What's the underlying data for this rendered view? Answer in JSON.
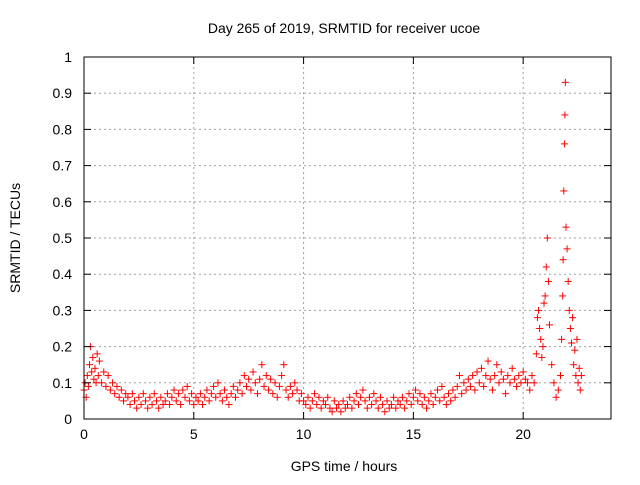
{
  "chart_data": {
    "type": "scatter",
    "title": "Day 265 of 2019, SRMTID for receiver ucoe",
    "xlabel": "GPS time / hours",
    "ylabel": "SRMTID / TECUs",
    "xlim": [
      0,
      24
    ],
    "ylim": [
      0,
      1
    ],
    "xticks": [
      0,
      5,
      10,
      15,
      20
    ],
    "xtick_labels": [
      "0",
      "5",
      "10",
      "15",
      "20"
    ],
    "yticks": [
      0,
      0.1,
      0.2,
      0.3,
      0.4,
      0.5,
      0.6,
      0.7,
      0.8,
      0.9,
      1
    ],
    "ytick_labels": [
      "0",
      "0.1",
      "0.2",
      "0.3",
      "0.4",
      "0.5",
      "0.6",
      "0.7",
      "0.8",
      "0.9",
      "1"
    ],
    "grid": true,
    "marker": "+",
    "series": [
      {
        "name": "SRMTID",
        "color": "#ff0000",
        "points": [
          [
            0.0,
            0.08
          ],
          [
            0.05,
            0.1
          ],
          [
            0.1,
            0.06
          ],
          [
            0.15,
            0.12
          ],
          [
            0.2,
            0.09
          ],
          [
            0.25,
            0.15
          ],
          [
            0.3,
            0.2
          ],
          [
            0.35,
            0.13
          ],
          [
            0.4,
            0.17
          ],
          [
            0.45,
            0.11
          ],
          [
            0.5,
            0.14
          ],
          [
            0.55,
            0.1
          ],
          [
            0.6,
            0.18
          ],
          [
            0.65,
            0.12
          ],
          [
            0.7,
            0.16
          ],
          [
            0.8,
            0.1
          ],
          [
            0.9,
            0.13
          ],
          [
            1.0,
            0.09
          ],
          [
            1.1,
            0.12
          ],
          [
            1.2,
            0.08
          ],
          [
            1.3,
            0.1
          ],
          [
            1.4,
            0.07
          ],
          [
            1.5,
            0.09
          ],
          [
            1.6,
            0.06
          ],
          [
            1.7,
            0.08
          ],
          [
            1.8,
            0.05
          ],
          [
            1.9,
            0.07
          ],
          [
            2.0,
            0.06
          ],
          [
            2.1,
            0.04
          ],
          [
            2.2,
            0.07
          ],
          [
            2.3,
            0.05
          ],
          [
            2.4,
            0.03
          ],
          [
            2.5,
            0.06
          ],
          [
            2.6,
            0.04
          ],
          [
            2.7,
            0.07
          ],
          [
            2.8,
            0.05
          ],
          [
            2.9,
            0.03
          ],
          [
            3.0,
            0.06
          ],
          [
            3.1,
            0.04
          ],
          [
            3.2,
            0.07
          ],
          [
            3.3,
            0.05
          ],
          [
            3.4,
            0.03
          ],
          [
            3.5,
            0.06
          ],
          [
            3.6,
            0.04
          ],
          [
            3.7,
            0.05
          ],
          [
            3.8,
            0.07
          ],
          [
            3.9,
            0.04
          ],
          [
            4.0,
            0.06
          ],
          [
            4.1,
            0.08
          ],
          [
            4.2,
            0.05
          ],
          [
            4.3,
            0.07
          ],
          [
            4.4,
            0.04
          ],
          [
            4.5,
            0.08
          ],
          [
            4.6,
            0.06
          ],
          [
            4.7,
            0.09
          ],
          [
            4.8,
            0.05
          ],
          [
            4.9,
            0.07
          ],
          [
            5.0,
            0.04
          ],
          [
            5.1,
            0.06
          ],
          [
            5.2,
            0.05
          ],
          [
            5.3,
            0.07
          ],
          [
            5.4,
            0.04
          ],
          [
            5.5,
            0.06
          ],
          [
            5.6,
            0.08
          ],
          [
            5.7,
            0.05
          ],
          [
            5.8,
            0.07
          ],
          [
            5.9,
            0.09
          ],
          [
            6.0,
            0.06
          ],
          [
            6.1,
            0.1
          ],
          [
            6.2,
            0.07
          ],
          [
            6.3,
            0.05
          ],
          [
            6.4,
            0.08
          ],
          [
            6.5,
            0.06
          ],
          [
            6.6,
            0.04
          ],
          [
            6.7,
            0.07
          ],
          [
            6.8,
            0.09
          ],
          [
            6.9,
            0.06
          ],
          [
            7.0,
            0.08
          ],
          [
            7.1,
            0.1
          ],
          [
            7.2,
            0.07
          ],
          [
            7.3,
            0.12
          ],
          [
            7.4,
            0.09
          ],
          [
            7.5,
            0.11
          ],
          [
            7.6,
            0.08
          ],
          [
            7.7,
            0.13
          ],
          [
            7.8,
            0.1
          ],
          [
            7.9,
            0.07
          ],
          [
            8.0,
            0.11
          ],
          [
            8.1,
            0.15
          ],
          [
            8.2,
            0.09
          ],
          [
            8.3,
            0.12
          ],
          [
            8.4,
            0.08
          ],
          [
            8.5,
            0.11
          ],
          [
            8.6,
            0.07
          ],
          [
            8.7,
            0.1
          ],
          [
            8.8,
            0.06
          ],
          [
            8.9,
            0.09
          ],
          [
            9.0,
            0.12
          ],
          [
            9.1,
            0.15
          ],
          [
            9.2,
            0.08
          ],
          [
            9.3,
            0.06
          ],
          [
            9.4,
            0.09
          ],
          [
            9.5,
            0.07
          ],
          [
            9.6,
            0.1
          ],
          [
            9.7,
            0.08
          ],
          [
            9.8,
            0.05
          ],
          [
            9.9,
            0.07
          ],
          [
            10.0,
            0.05
          ],
          [
            10.1,
            0.04
          ],
          [
            10.2,
            0.06
          ],
          [
            10.3,
            0.03
          ],
          [
            10.4,
            0.05
          ],
          [
            10.5,
            0.07
          ],
          [
            10.6,
            0.04
          ],
          [
            10.7,
            0.06
          ],
          [
            10.8,
            0.03
          ],
          [
            10.9,
            0.05
          ],
          [
            11.0,
            0.04
          ],
          [
            11.1,
            0.06
          ],
          [
            11.2,
            0.03
          ],
          [
            11.3,
            0.02
          ],
          [
            11.4,
            0.05
          ],
          [
            11.5,
            0.03
          ],
          [
            11.6,
            0.04
          ],
          [
            11.7,
            0.02
          ],
          [
            11.8,
            0.05
          ],
          [
            11.9,
            0.03
          ],
          [
            12.0,
            0.04
          ],
          [
            12.1,
            0.06
          ],
          [
            12.2,
            0.03
          ],
          [
            12.3,
            0.05
          ],
          [
            12.4,
            0.07
          ],
          [
            12.5,
            0.04
          ],
          [
            12.6,
            0.06
          ],
          [
            12.7,
            0.08
          ],
          [
            12.8,
            0.05
          ],
          [
            12.9,
            0.03
          ],
          [
            13.0,
            0.06
          ],
          [
            13.1,
            0.04
          ],
          [
            13.2,
            0.07
          ],
          [
            13.3,
            0.05
          ],
          [
            13.4,
            0.03
          ],
          [
            13.5,
            0.06
          ],
          [
            13.6,
            0.04
          ],
          [
            13.7,
            0.02
          ],
          [
            13.8,
            0.05
          ],
          [
            13.9,
            0.03
          ],
          [
            14.0,
            0.04
          ],
          [
            14.1,
            0.06
          ],
          [
            14.2,
            0.03
          ],
          [
            14.3,
            0.05
          ],
          [
            14.4,
            0.04
          ],
          [
            14.5,
            0.06
          ],
          [
            14.6,
            0.03
          ],
          [
            14.7,
            0.05
          ],
          [
            14.8,
            0.07
          ],
          [
            14.9,
            0.04
          ],
          [
            15.0,
            0.06
          ],
          [
            15.1,
            0.08
          ],
          [
            15.2,
            0.05
          ],
          [
            15.3,
            0.07
          ],
          [
            15.4,
            0.04
          ],
          [
            15.5,
            0.06
          ],
          [
            15.6,
            0.03
          ],
          [
            15.7,
            0.05
          ],
          [
            15.8,
            0.07
          ],
          [
            15.9,
            0.04
          ],
          [
            16.0,
            0.06
          ],
          [
            16.1,
            0.08
          ],
          [
            16.2,
            0.05
          ],
          [
            16.3,
            0.09
          ],
          [
            16.4,
            0.06
          ],
          [
            16.5,
            0.04
          ],
          [
            16.6,
            0.07
          ],
          [
            16.7,
            0.05
          ],
          [
            16.8,
            0.08
          ],
          [
            16.9,
            0.06
          ],
          [
            17.0,
            0.09
          ],
          [
            17.1,
            0.12
          ],
          [
            17.2,
            0.07
          ],
          [
            17.3,
            0.1
          ],
          [
            17.4,
            0.08
          ],
          [
            17.5,
            0.11
          ],
          [
            17.6,
            0.09
          ],
          [
            17.7,
            0.12
          ],
          [
            17.8,
            0.08
          ],
          [
            17.9,
            0.13
          ],
          [
            18.0,
            0.1
          ],
          [
            18.1,
            0.14
          ],
          [
            18.2,
            0.09
          ],
          [
            18.3,
            0.12
          ],
          [
            18.4,
            0.16
          ],
          [
            18.5,
            0.11
          ],
          [
            18.6,
            0.08
          ],
          [
            18.7,
            0.12
          ],
          [
            18.8,
            0.15
          ],
          [
            18.9,
            0.1
          ],
          [
            19.0,
            0.13
          ],
          [
            19.1,
            0.11
          ],
          [
            19.2,
            0.07
          ],
          [
            19.3,
            0.12
          ],
          [
            19.4,
            0.1
          ],
          [
            19.5,
            0.14
          ],
          [
            19.6,
            0.11
          ],
          [
            19.7,
            0.09
          ],
          [
            19.8,
            0.12
          ],
          [
            19.9,
            0.1
          ],
          [
            20.0,
            0.13
          ],
          [
            20.1,
            0.11
          ],
          [
            20.2,
            0.1
          ],
          [
            20.3,
            0.08
          ],
          [
            20.4,
            0.12
          ],
          [
            20.5,
            0.1
          ],
          [
            20.6,
            0.18
          ],
          [
            20.65,
            0.28
          ],
          [
            20.7,
            0.3
          ],
          [
            20.75,
            0.25
          ],
          [
            20.8,
            0.22
          ],
          [
            20.85,
            0.17
          ],
          [
            20.9,
            0.2
          ],
          [
            20.95,
            0.32
          ],
          [
            21.0,
            0.34
          ],
          [
            21.05,
            0.42
          ],
          [
            21.1,
            0.5
          ],
          [
            21.15,
            0.38
          ],
          [
            21.2,
            0.26
          ],
          [
            21.3,
            0.15
          ],
          [
            21.4,
            0.1
          ],
          [
            21.5,
            0.06
          ],
          [
            21.6,
            0.08
          ],
          [
            21.7,
            0.12
          ],
          [
            21.75,
            0.22
          ],
          [
            21.8,
            0.34
          ],
          [
            21.82,
            0.44
          ],
          [
            21.85,
            0.63
          ],
          [
            21.88,
            0.76
          ],
          [
            21.9,
            0.84
          ],
          [
            21.92,
            0.93
          ],
          [
            21.95,
            0.53
          ],
          [
            22.0,
            0.47
          ],
          [
            22.05,
            0.38
          ],
          [
            22.1,
            0.3
          ],
          [
            22.15,
            0.25
          ],
          [
            22.2,
            0.21
          ],
          [
            22.25,
            0.28
          ],
          [
            22.3,
            0.15
          ],
          [
            22.35,
            0.19
          ],
          [
            22.4,
            0.12
          ],
          [
            22.45,
            0.22
          ],
          [
            22.5,
            0.1
          ],
          [
            22.55,
            0.14
          ],
          [
            22.6,
            0.08
          ],
          [
            22.65,
            0.12
          ]
        ]
      }
    ]
  }
}
